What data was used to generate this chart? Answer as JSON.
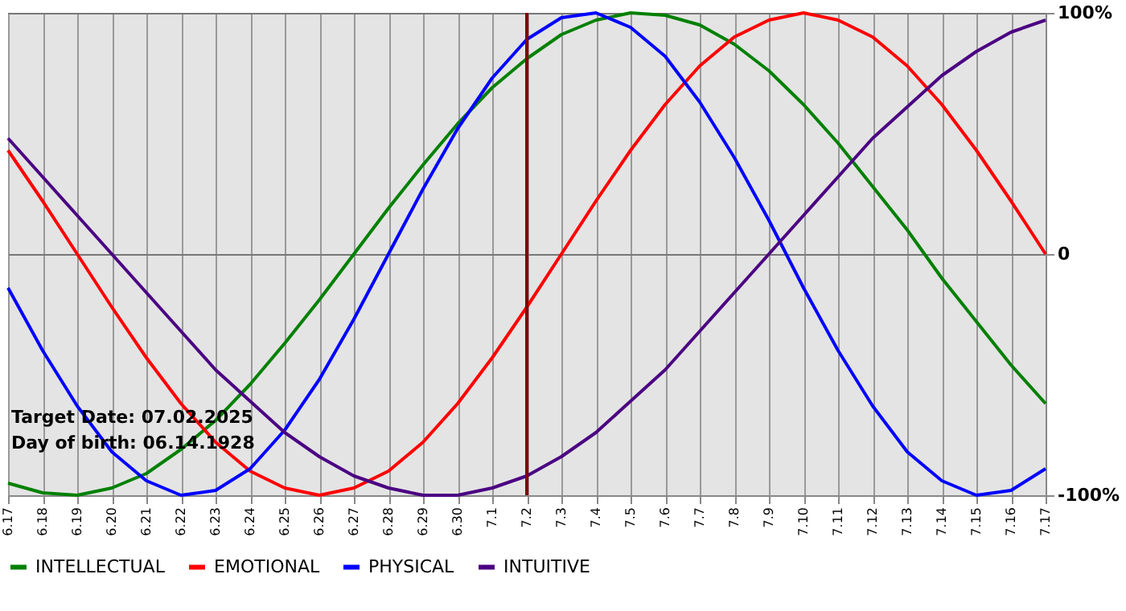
{
  "chart_data": {
    "type": "line",
    "categories": [
      "6.17",
      "6.18",
      "6.19",
      "6.20",
      "6.21",
      "6.22",
      "6.23",
      "6.24",
      "6.25",
      "6.26",
      "6.27",
      "6.28",
      "6.29",
      "6.30",
      "7.1",
      "7.2",
      "7.3",
      "7.4",
      "7.5",
      "7.6",
      "7.7",
      "7.8",
      "7.9",
      "7.10",
      "7.11",
      "7.12",
      "7.13",
      "7.14",
      "7.15",
      "7.16",
      "7.17"
    ],
    "series": [
      {
        "name": "INTELLECTUAL",
        "color": "#008000",
        "values": [
          -95,
          -99,
          -100,
          -97,
          -91,
          -81,
          -69,
          -54,
          -37,
          -19,
          0,
          19,
          37,
          54,
          69,
          81,
          91,
          97,
          100,
          99,
          95,
          87,
          76,
          62,
          46,
          28,
          10,
          -10,
          -28,
          -46,
          -62
        ]
      },
      {
        "name": "EMOTIONAL",
        "color": "#ff0000",
        "values": [
          43,
          22,
          0,
          -22,
          -43,
          -62,
          -78,
          -90,
          -97,
          -100,
          -97,
          -90,
          -78,
          -62,
          -43,
          -22,
          0,
          22,
          43,
          62,
          78,
          90,
          97,
          100,
          97,
          90,
          78,
          62,
          43,
          22,
          0
        ]
      },
      {
        "name": "PHYSICAL",
        "color": "#0000ff",
        "values": [
          -14,
          -40,
          -63,
          -82,
          -94,
          -100,
          -98,
          -89,
          -73,
          -52,
          -27,
          0,
          27,
          52,
          73,
          89,
          98,
          100,
          94,
          82,
          63,
          40,
          14,
          -14,
          -40,
          -63,
          -82,
          -94,
          -100,
          -98,
          -89
        ]
      },
      {
        "name": "INTUITIVE",
        "color": "#4b0082",
        "values": [
          48,
          32,
          16,
          0,
          -16,
          -32,
          -48,
          -61,
          -74,
          -84,
          -92,
          -97,
          -100,
          -100,
          -97,
          -92,
          -84,
          -74,
          -61,
          -48,
          -32,
          -16,
          0,
          16,
          32,
          48,
          61,
          74,
          84,
          92,
          97
        ]
      }
    ],
    "ylim": [
      -100,
      100
    ],
    "yticks": [
      {
        "value": 100,
        "label": "100%"
      },
      0,
      {
        "value": -100,
        "label": "-100%"
      }
    ],
    "grid": true,
    "legend": "bottom left",
    "ref_lines": [
      {
        "axis": "x",
        "value": "7.2",
        "color": "#800000"
      }
    ],
    "annotations": [
      "Target Date: 07.02.2025",
      "Day of birth: 06.14.1928"
    ]
  }
}
